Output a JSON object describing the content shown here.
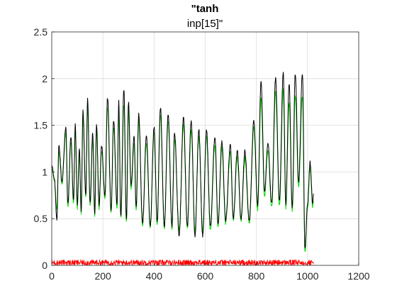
{
  "chart_data": {
    "type": "line",
    "title_line1": "\"tanh",
    "title_line2": "inp[15]\"",
    "xlabel": "",
    "ylabel": "",
    "xlim": [
      0,
      1200
    ],
    "ylim": [
      0,
      2.5
    ],
    "xticks": [
      0,
      200,
      400,
      600,
      800,
      1000,
      1200
    ],
    "yticks": [
      0,
      0.5,
      1,
      1.5,
      2,
      2.5
    ],
    "xtick_labels": [
      "0",
      "200",
      "400",
      "600",
      "800",
      "1000",
      "1200"
    ],
    "ytick_labels": [
      "0",
      "0.5",
      "1",
      "1.5",
      "2",
      "2.5"
    ],
    "grid": true,
    "n_points": 1024,
    "series": [
      {
        "color": "#00dd00",
        "style": "target",
        "x": [
          0,
          10,
          20,
          28,
          40,
          55,
          63,
          75,
          85,
          92,
          100,
          108,
          115,
          122,
          133,
          140,
          150,
          160,
          168,
          175,
          185,
          195,
          208,
          218,
          232,
          242,
          255,
          262,
          270,
          282,
          292,
          300,
          310,
          322,
          330,
          340,
          355,
          370,
          385,
          400,
          412,
          425,
          440,
          455,
          470,
          480,
          498,
          515,
          530,
          545,
          560,
          575,
          590,
          605,
          620,
          638,
          650,
          665,
          680,
          698,
          710,
          725,
          740,
          755,
          772,
          790,
          805,
          818,
          832,
          845,
          860,
          875,
          890,
          905,
          915,
          928,
          940,
          952,
          965,
          980,
          990,
          1000,
          1010,
          1020,
          1024
        ],
        "y": [
          1.05,
          0.9,
          0.62,
          1.22,
          0.88,
          1.42,
          0.62,
          1.33,
          0.66,
          1.45,
          0.62,
          1.18,
          0.55,
          1.58,
          0.72,
          1.7,
          0.62,
          1.34,
          0.52,
          1.45,
          0.62,
          1.22,
          0.72,
          1.7,
          0.58,
          1.48,
          0.62,
          1.65,
          0.5,
          1.72,
          0.45,
          1.66,
          0.82,
          1.3,
          0.58,
          1.55,
          0.42,
          1.32,
          0.4,
          1.42,
          0.45,
          1.6,
          0.4,
          1.55,
          0.4,
          1.35,
          0.38,
          1.5,
          0.4,
          1.45,
          0.38,
          1.38,
          0.38,
          1.38,
          0.38,
          1.3,
          0.42,
          1.25,
          0.45,
          1.2,
          0.48,
          1.15,
          0.48,
          1.15,
          0.45,
          1.48,
          0.6,
          1.78,
          0.75,
          1.22,
          0.62,
          1.85,
          0.65,
          1.88,
          0.62,
          1.75,
          0.58,
          1.82,
          0.85,
          1.82,
          0.14,
          0.62,
          1.05,
          0.62,
          0.72
        ]
      },
      {
        "color": "#000000",
        "style": "prediction",
        "x": [
          0,
          10,
          20,
          28,
          40,
          55,
          63,
          75,
          85,
          92,
          100,
          108,
          115,
          122,
          133,
          140,
          150,
          160,
          168,
          175,
          185,
          195,
          208,
          218,
          232,
          242,
          255,
          262,
          270,
          282,
          292,
          300,
          310,
          322,
          330,
          340,
          355,
          370,
          385,
          400,
          412,
          425,
          440,
          455,
          470,
          480,
          498,
          515,
          530,
          545,
          560,
          575,
          590,
          605,
          620,
          638,
          650,
          665,
          680,
          698,
          710,
          725,
          740,
          755,
          772,
          790,
          805,
          818,
          832,
          845,
          860,
          875,
          890,
          905,
          915,
          928,
          940,
          952,
          965,
          980,
          990,
          1000,
          1010,
          1020,
          1024
        ],
        "y": [
          1.08,
          0.92,
          0.5,
          1.28,
          0.9,
          1.48,
          0.66,
          1.38,
          0.7,
          1.5,
          0.66,
          1.25,
          0.58,
          1.65,
          0.75,
          1.78,
          0.66,
          1.42,
          0.55,
          1.52,
          0.66,
          1.28,
          0.75,
          1.8,
          0.6,
          1.55,
          0.66,
          1.75,
          0.52,
          1.88,
          0.48,
          1.75,
          0.86,
          1.38,
          0.62,
          1.62,
          0.45,
          1.4,
          0.42,
          1.48,
          0.48,
          1.68,
          0.42,
          1.62,
          0.42,
          1.42,
          0.32,
          1.58,
          0.42,
          1.55,
          0.32,
          1.45,
          0.32,
          1.45,
          0.42,
          1.38,
          0.45,
          1.32,
          0.48,
          1.28,
          0.5,
          1.22,
          0.5,
          1.22,
          0.48,
          1.55,
          0.65,
          1.96,
          0.8,
          1.3,
          0.66,
          2.0,
          0.7,
          2.06,
          0.66,
          1.95,
          0.62,
          2.05,
          0.9,
          2.06,
          0.18,
          0.66,
          1.1,
          0.66,
          0.8
        ]
      },
      {
        "color": "#ff0000",
        "style": "error",
        "band": [
          0.0,
          0.06
        ]
      }
    ]
  }
}
